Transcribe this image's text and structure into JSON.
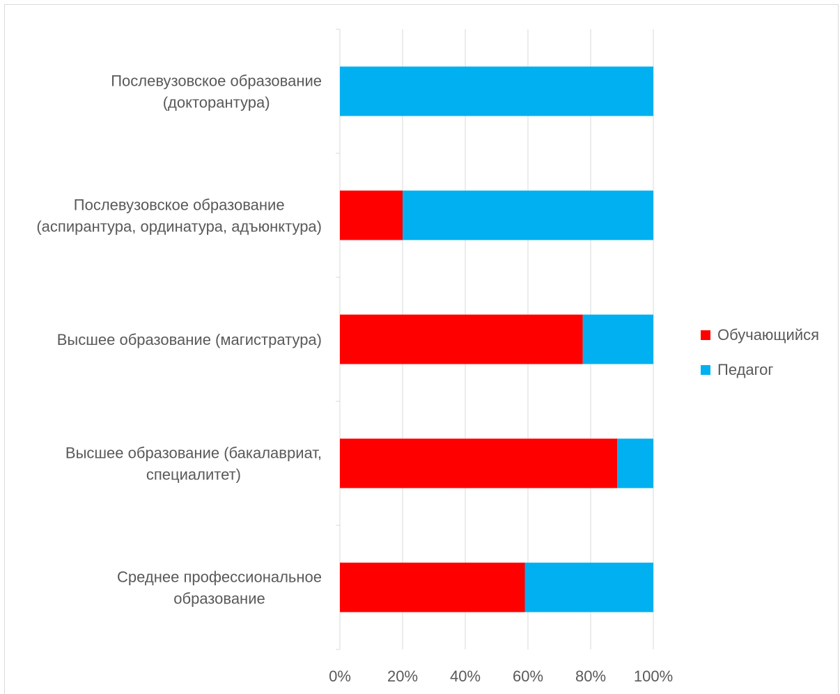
{
  "chart_data": {
    "type": "bar",
    "orientation": "horizontal",
    "stacked": "percent",
    "categories": [
      [
        "Послевузовское образование",
        "(докторантура)"
      ],
      [
        "Послевузовское образование",
        "(аспирантура, ординатура, адъюнктура)"
      ],
      [
        "Высшее образование (магистратура)"
      ],
      [
        "Высшее образование (бакалавриат,",
        "специалитет)"
      ],
      [
        "Среднее профессиональное",
        "образование"
      ]
    ],
    "series": [
      {
        "name": "Обучающийся",
        "color": "#ff0000",
        "values": [
          0,
          20,
          77.5,
          88.5,
          59
        ]
      },
      {
        "name": "Педагог",
        "color": "#00b0f0",
        "values": [
          100,
          80,
          22.5,
          11.5,
          41
        ]
      }
    ],
    "x_ticks": [
      "0%",
      "20%",
      "40%",
      "60%",
      "80%",
      "100%"
    ],
    "xlim": [
      0,
      100
    ],
    "grid": "vertical",
    "legend": "right"
  }
}
